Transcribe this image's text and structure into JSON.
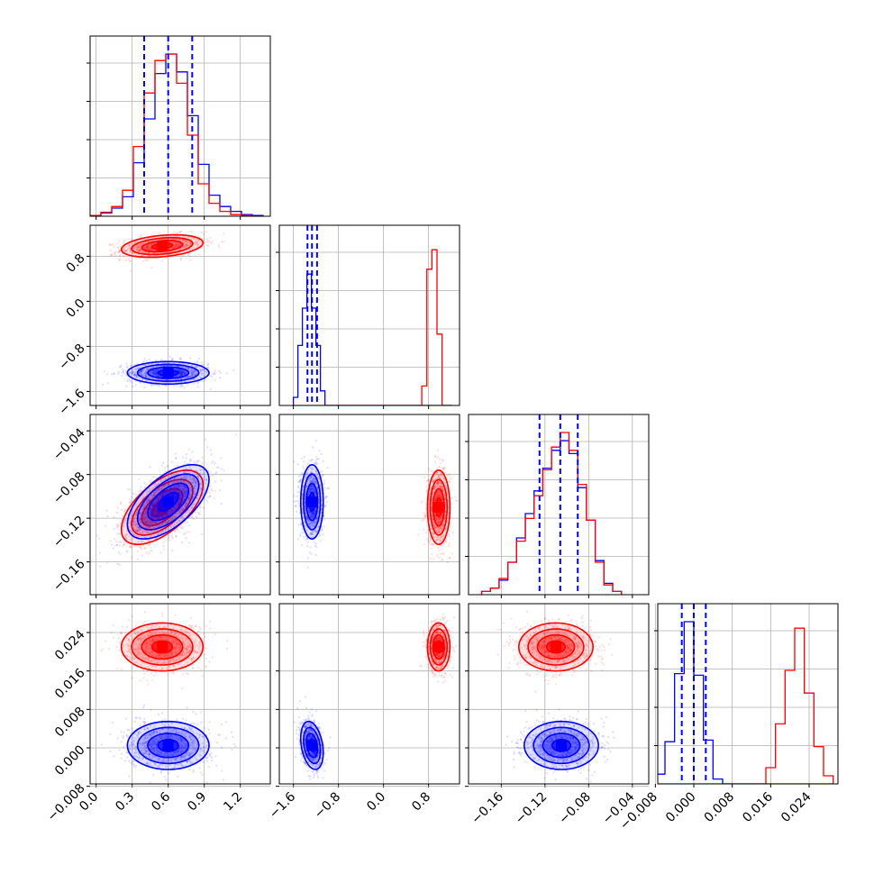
{
  "colors": {
    "series_a": "#ff0000",
    "series_b": "#0000ff",
    "grid": "#b0b0b0",
    "frame": "#000000"
  },
  "chart_data": {
    "type": "corner",
    "grid": true,
    "legend": "none",
    "dims": [
      {
        "range": [
          -0.05,
          1.45
        ],
        "ticks": [
          0.0,
          0.3,
          0.6,
          0.9,
          1.2
        ],
        "tick_labels": [
          "0.0",
          "0.3",
          "0.6",
          "0.9",
          "1.2"
        ]
      },
      {
        "range": [
          -1.85,
          1.35
        ],
        "ticks": [
          -1.6,
          -0.8,
          0.0,
          0.8
        ],
        "tick_labels": [
          "−1.6",
          "−0.8",
          "0.0",
          "0.8"
        ]
      },
      {
        "range": [
          -0.19,
          -0.025
        ],
        "ticks": [
          -0.16,
          -0.12,
          -0.08,
          -0.04
        ],
        "tick_labels": [
          "−0.16",
          "−0.12",
          "−0.08",
          "−0.04"
        ]
      },
      {
        "range": [
          -0.0075,
          0.03
        ],
        "ticks": [
          -0.008,
          0.0,
          0.008,
          0.016,
          0.024
        ],
        "tick_labels": [
          "−0.008",
          "0.000",
          "0.008",
          "0.016",
          "0.024"
        ]
      }
    ],
    "series": [
      {
        "color": "red",
        "means": [
          0.55,
          0.98,
          -0.11,
          0.021
        ],
        "sds": [
          0.17,
          0.1,
          0.017,
          0.0025
        ]
      },
      {
        "color": "blue",
        "means": [
          0.6,
          -1.27,
          -0.105,
          0.0005
        ],
        "sds": [
          0.17,
          0.1,
          0.017,
          0.0025
        ]
      }
    ],
    "quantile_lines_series": "blue",
    "histograms": [
      {
        "dim": 0,
        "bins": [
          -0.05,
          0.04,
          0.13,
          0.22,
          0.31,
          0.4,
          0.49,
          0.58,
          0.67,
          0.76,
          0.85,
          0.94,
          1.03,
          1.12,
          1.21,
          1.3,
          1.39
        ],
        "red": [
          0.005,
          0.025,
          0.06,
          0.16,
          0.43,
          0.76,
          0.96,
          1.0,
          0.82,
          0.5,
          0.2,
          0.08,
          0.03,
          0.01,
          0.005,
          0.0
        ],
        "blue": [
          0.005,
          0.02,
          0.05,
          0.12,
          0.33,
          0.6,
          0.88,
          1.0,
          0.89,
          0.62,
          0.32,
          0.13,
          0.06,
          0.03,
          0.01,
          0.005
        ],
        "quantiles": [
          0.4,
          0.6,
          0.8
        ]
      },
      {
        "dim": 1,
        "bins": [
          -1.6,
          -1.52,
          -1.44,
          -1.36,
          -1.28,
          -1.2,
          -1.12,
          -1.04,
          0.68,
          0.77,
          0.86,
          0.95,
          1.04,
          1.13,
          1.22
        ],
        "red": [
          0.0,
          0.0,
          0.0,
          0.0,
          0.0,
          0.0,
          0.0,
          0.0,
          0.12,
          0.84,
          0.96,
          0.44,
          0.0,
          0.0
        ],
        "blue": [
          0.05,
          0.37,
          0.6,
          0.81,
          0.6,
          0.37,
          0.09,
          0.0,
          0.0,
          0.0,
          0.0,
          0.0,
          0.0,
          0.0
        ],
        "quantiles": [
          -1.35,
          -1.27,
          -1.18
        ]
      },
      {
        "dim": 2,
        "bins": [
          -0.178,
          -0.17,
          -0.162,
          -0.154,
          -0.146,
          -0.138,
          -0.13,
          -0.122,
          -0.114,
          -0.106,
          -0.098,
          -0.09,
          -0.082,
          -0.074,
          -0.066,
          -0.058,
          -0.05
        ],
        "red": [
          0.02,
          0.04,
          0.1,
          0.2,
          0.33,
          0.47,
          0.61,
          0.77,
          0.91,
          1.0,
          0.89,
          0.68,
          0.46,
          0.2,
          0.06,
          0.02
        ],
        "blue": [
          0.02,
          0.04,
          0.09,
          0.2,
          0.35,
          0.5,
          0.64,
          0.78,
          0.89,
          0.95,
          0.87,
          0.66,
          0.46,
          0.21,
          0.07,
          0.02
        ],
        "quantiles": [
          -0.125,
          -0.106,
          -0.09
        ]
      },
      {
        "dim": 3,
        "bins": [
          -0.008,
          -0.006,
          -0.004,
          -0.002,
          0.0,
          0.002,
          0.004,
          0.006,
          0.015,
          0.017,
          0.019,
          0.021,
          0.023,
          0.025,
          0.027,
          0.029
        ],
        "red": [
          0.0,
          0.0,
          0.0,
          0.0,
          0.0,
          0.0,
          0.0,
          0.0,
          0.1,
          0.37,
          0.7,
          0.96,
          0.56,
          0.23,
          0.05
        ],
        "blue": [
          0.06,
          0.26,
          0.68,
          1.0,
          0.67,
          0.27,
          0.03,
          0.0,
          0.0,
          0.0,
          0.0,
          0.0,
          0.0,
          0.0,
          0.0
        ],
        "quantiles": [
          -0.0025,
          0.0,
          0.0025
        ]
      }
    ],
    "scatter_panels": [
      {
        "x_dim": 0,
        "y_dim": 1,
        "correlation": {
          "red": 0.3,
          "blue": 0.0
        }
      },
      {
        "x_dim": 0,
        "y_dim": 2,
        "correlation": {
          "red": 0.6,
          "blue": 0.6
        }
      },
      {
        "x_dim": 1,
        "y_dim": 2,
        "correlation": {
          "red": 0.0,
          "blue": 0.0
        }
      },
      {
        "x_dim": 0,
        "y_dim": 3,
        "correlation": {
          "red": 0.0,
          "blue": 0.0
        }
      },
      {
        "x_dim": 1,
        "y_dim": 3,
        "correlation": {
          "red": 0.0,
          "blue": -0.3
        }
      },
      {
        "x_dim": 2,
        "y_dim": 3,
        "correlation": {
          "red": 0.0,
          "blue": 0.0
        }
      }
    ],
    "contour_levels_sigma": [
      0.5,
      1.0,
      1.5,
      2.0
    ]
  }
}
